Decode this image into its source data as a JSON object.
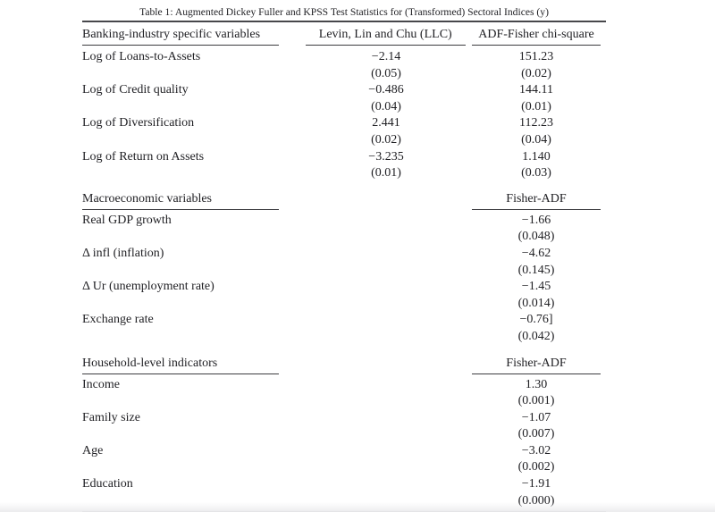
{
  "page": {
    "caption": "Table 1: Augmented Dickey Fuller and KPSS Test Statistics for (Transformed) Sectoral Indices (y)"
  },
  "theme": {
    "background": "#ffffff",
    "text_color": "#1f1f23",
    "rule_color": "#47474b"
  },
  "table": {
    "sections": [
      {
        "header": {
          "col1": "Banking-industry specific variables",
          "col2": "Levin, Lin and Chu (LLC)",
          "col3": "ADF-Fisher chi-square"
        },
        "rows": [
          {
            "label": "Log of Loans-to-Assets",
            "llc": "−2.14",
            "llc_p": "(0.05)",
            "adf": "151.23",
            "adf_p": "(0.02)"
          },
          {
            "label": "Log of Credit quality",
            "llc": "−0.486",
            "llc_p": "(0.04)",
            "adf": "144.11",
            "adf_p": "(0.01)"
          },
          {
            "label": "Log of Diversification",
            "llc": "2.441",
            "llc_p": "(0.02)",
            "adf": "112.23",
            "adf_p": "(0.04)"
          },
          {
            "label": "Log of Return on Assets",
            "llc": "−3.235",
            "llc_p": "(0.01)",
            "adf": "1.140",
            "adf_p": "(0.03)"
          }
        ]
      },
      {
        "header": {
          "col1": "Macroeconomic variables",
          "col2": "",
          "col3": "Fisher-ADF"
        },
        "rows": [
          {
            "label": "Real GDP growth",
            "llc": "",
            "llc_p": "",
            "adf": "−1.66",
            "adf_p": "(0.048)"
          },
          {
            "label": "Δ infl (inflation)",
            "llc": "",
            "llc_p": "",
            "adf": "−4.62",
            "adf_p": "(0.145)"
          },
          {
            "label": "Δ Ur (unemployment rate)",
            "llc": "",
            "llc_p": "",
            "adf": "−1.45",
            "adf_p": "(0.014)"
          },
          {
            "label": "Exchange rate",
            "llc": "",
            "llc_p": "",
            "adf": "−0.76]",
            "adf_p": "(0.042)"
          }
        ]
      },
      {
        "header": {
          "col1": "Household-level indicators",
          "col2": "",
          "col3": "Fisher-ADF"
        },
        "rows": [
          {
            "label": "Income",
            "llc": "",
            "llc_p": "",
            "adf": "1.30",
            "adf_p": "(0.001)"
          },
          {
            "label": "Family size",
            "llc": "",
            "llc_p": "",
            "adf": "−1.07",
            "adf_p": "(0.007)"
          },
          {
            "label": "Age",
            "llc": "",
            "llc_p": "",
            "adf": "−3.02",
            "adf_p": "(0.002)"
          },
          {
            "label": "Education",
            "llc": "",
            "llc_p": "",
            "adf": "−1.91",
            "adf_p": "(0.000)"
          }
        ]
      }
    ]
  }
}
